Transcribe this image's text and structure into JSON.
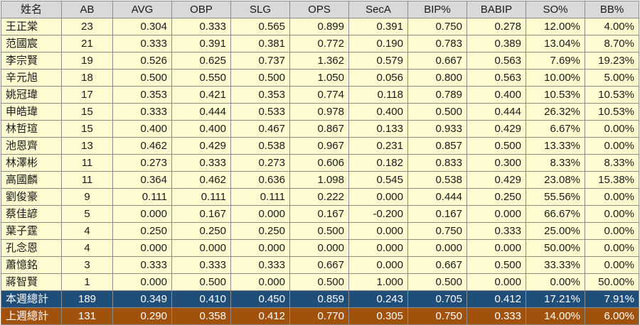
{
  "headers": [
    "姓名",
    "AB",
    "AVG",
    "OBP",
    "SLG",
    "OPS",
    "SecA",
    "BIP%",
    "BABIP",
    "SO%",
    "BB%"
  ],
  "rows": [
    [
      "王正棠",
      "23",
      "0.304",
      "0.333",
      "0.565",
      "0.899",
      "0.391",
      "0.750",
      "0.278",
      "12.00%",
      "4.00%"
    ],
    [
      "范國宸",
      "21",
      "0.333",
      "0.391",
      "0.381",
      "0.772",
      "0.190",
      "0.783",
      "0.389",
      "13.04%",
      "8.70%"
    ],
    [
      "李宗賢",
      "19",
      "0.526",
      "0.625",
      "0.737",
      "1.362",
      "0.579",
      "0.667",
      "0.563",
      "7.69%",
      "19.23%"
    ],
    [
      "辛元旭",
      "18",
      "0.500",
      "0.550",
      "0.500",
      "1.050",
      "0.056",
      "0.800",
      "0.563",
      "10.00%",
      "5.00%"
    ],
    [
      "姚冠瑋",
      "17",
      "0.353",
      "0.421",
      "0.353",
      "0.774",
      "0.118",
      "0.789",
      "0.400",
      "10.53%",
      "10.53%"
    ],
    [
      "申皓瑋",
      "15",
      "0.333",
      "0.444",
      "0.533",
      "0.978",
      "0.400",
      "0.500",
      "0.444",
      "26.32%",
      "10.53%"
    ],
    [
      "林哲瑄",
      "15",
      "0.400",
      "0.400",
      "0.467",
      "0.867",
      "0.133",
      "0.933",
      "0.429",
      "6.67%",
      "0.00%"
    ],
    [
      "池恩齊",
      "13",
      "0.462",
      "0.429",
      "0.538",
      "0.967",
      "0.231",
      "0.857",
      "0.500",
      "13.33%",
      "0.00%"
    ],
    [
      "林澤彬",
      "11",
      "0.273",
      "0.333",
      "0.273",
      "0.606",
      "0.182",
      "0.833",
      "0.300",
      "8.33%",
      "8.33%"
    ],
    [
      "高國麟",
      "11",
      "0.364",
      "0.462",
      "0.636",
      "1.098",
      "0.545",
      "0.538",
      "0.429",
      "23.08%",
      "15.38%"
    ],
    [
      "劉俊豪",
      "9",
      "0.111",
      "0.111",
      "0.111",
      "0.222",
      "0.000",
      "0.444",
      "0.250",
      "55.56%",
      "0.00%"
    ],
    [
      "蔡佳諺",
      "5",
      "0.000",
      "0.167",
      "0.000",
      "0.167",
      "-0.200",
      "0.167",
      "0.000",
      "66.67%",
      "0.00%"
    ],
    [
      "葉子霆",
      "4",
      "0.250",
      "0.250",
      "0.250",
      "0.500",
      "0.000",
      "0.750",
      "0.333",
      "25.00%",
      "0.00%"
    ],
    [
      "孔念恩",
      "4",
      "0.000",
      "0.000",
      "0.000",
      "0.000",
      "0.000",
      "0.000",
      "0.000",
      "50.00%",
      "0.00%"
    ],
    [
      "蕭憶銘",
      "3",
      "0.333",
      "0.333",
      "0.333",
      "0.667",
      "0.000",
      "0.667",
      "0.500",
      "33.33%",
      "0.00%"
    ],
    [
      "蔣智賢",
      "1",
      "0.000",
      "0.500",
      "0.000",
      "0.500",
      "1.000",
      "0.500",
      "0.000",
      "0.00%",
      "50.00%"
    ]
  ],
  "totals": {
    "this_week": [
      "本週總計",
      "189",
      "0.349",
      "0.410",
      "0.450",
      "0.859",
      "0.243",
      "0.705",
      "0.412",
      "17.21%",
      "7.91%"
    ],
    "last_week": [
      "上週總計",
      "131",
      "0.290",
      "0.358",
      "0.412",
      "0.770",
      "0.305",
      "0.750",
      "0.333",
      "14.00%",
      "6.00%"
    ]
  },
  "colors": {
    "header_bg": "#d9d9d9",
    "row_bg": "#fffbd0",
    "this_week_bg": "#1f4e79",
    "last_week_bg": "#a0520d",
    "total_text": "#ffffff"
  }
}
